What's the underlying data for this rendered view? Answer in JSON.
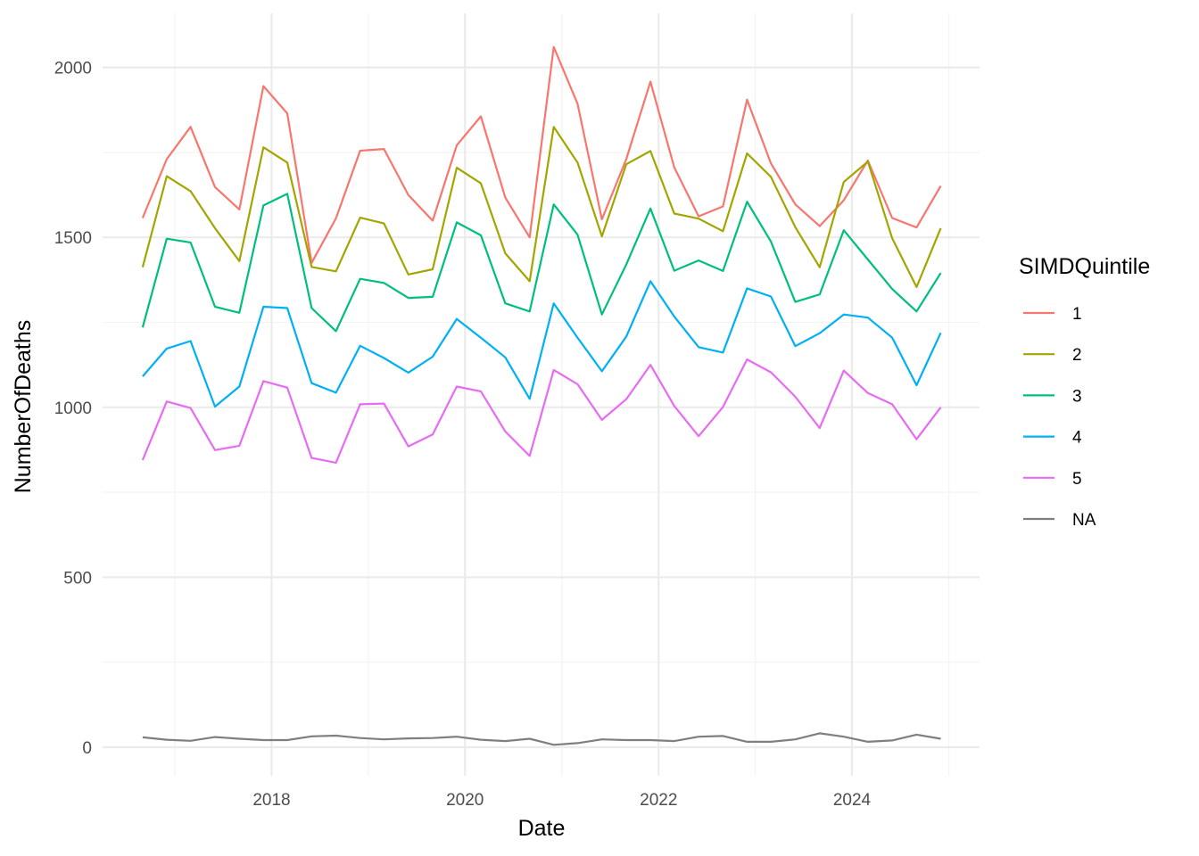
{
  "chart_data": {
    "type": "line",
    "xlabel": "Date",
    "ylabel": "NumberOfDeaths",
    "x_ticks": [
      "2018",
      "2020",
      "2022",
      "2024"
    ],
    "y_ticks": [
      "0",
      "500",
      "1000",
      "1500",
      "2000"
    ],
    "legend": {
      "title": "SIMDQuintile",
      "placement": "right"
    },
    "grid": true,
    "x": [
      "2016-09",
      "2016-12",
      "2017-03",
      "2017-06",
      "2017-09",
      "2017-12",
      "2018-03",
      "2018-06",
      "2018-09",
      "2018-12",
      "2019-03",
      "2019-06",
      "2019-09",
      "2019-12",
      "2020-03",
      "2020-06",
      "2020-09",
      "2020-12",
      "2021-03",
      "2021-06",
      "2021-09",
      "2021-12",
      "2022-03",
      "2022-06",
      "2022-09",
      "2022-12",
      "2023-03",
      "2023-06",
      "2023-09",
      "2023-12",
      "2024-03",
      "2024-06",
      "2024-09",
      "2024-12"
    ],
    "series": [
      {
        "name": "1",
        "color": "#F8766D",
        "values": [
          1557,
          1730,
          1825,
          1648,
          1582,
          1945,
          1865,
          1425,
          1556,
          1755,
          1760,
          1625,
          1549,
          1771,
          1856,
          1617,
          1500,
          2060,
          1893,
          1553,
          1730,
          1958,
          1706,
          1562,
          1591,
          1905,
          1718,
          1597,
          1533,
          1609,
          1726,
          1557,
          1529,
          1651
        ]
      },
      {
        "name": "2",
        "color": "#A3A500",
        "values": [
          1412,
          1680,
          1636,
          1527,
          1430,
          1765,
          1720,
          1413,
          1400,
          1558,
          1541,
          1391,
          1406,
          1705,
          1659,
          1453,
          1371,
          1825,
          1720,
          1503,
          1715,
          1754,
          1570,
          1555,
          1518,
          1747,
          1678,
          1530,
          1412,
          1663,
          1723,
          1497,
          1354,
          1527
        ]
      },
      {
        "name": "3",
        "color": "#00BF7D",
        "values": [
          1235,
          1496,
          1485,
          1296,
          1278,
          1594,
          1628,
          1292,
          1224,
          1378,
          1366,
          1322,
          1325,
          1544,
          1506,
          1306,
          1282,
          1597,
          1508,
          1273,
          1420,
          1585,
          1402,
          1432,
          1401,
          1605,
          1488,
          1310,
          1332,
          1521,
          1435,
          1348,
          1282,
          1395
        ]
      },
      {
        "name": "4",
        "color": "#00B0F6",
        "values": [
          1091,
          1173,
          1195,
          1002,
          1061,
          1296,
          1292,
          1071,
          1043,
          1181,
          1145,
          1102,
          1149,
          1260,
          1205,
          1147,
          1025,
          1306,
          1205,
          1106,
          1208,
          1371,
          1267,
          1177,
          1161,
          1350,
          1326,
          1180,
          1218,
          1273,
          1264,
          1205,
          1065,
          1219
        ]
      },
      {
        "name": "5",
        "color": "#E76BF3",
        "values": [
          845,
          1017,
          998,
          874,
          887,
          1077,
          1058,
          851,
          837,
          1009,
          1011,
          885,
          920,
          1061,
          1047,
          929,
          857,
          1110,
          1068,
          963,
          1024,
          1125,
          1004,
          915,
          1001,
          1141,
          1103,
          1031,
          939,
          1108,
          1042,
          1009,
          906,
          1000
        ]
      },
      {
        "name": "NA",
        "color": "#7F7F7F",
        "values": [
          29,
          22,
          19,
          30,
          25,
          21,
          21,
          32,
          34,
          27,
          23,
          26,
          27,
          31,
          22,
          18,
          25,
          7,
          12,
          23,
          21,
          21,
          18,
          31,
          33,
          16,
          16,
          23,
          41,
          31,
          16,
          20,
          37,
          25
        ]
      }
    ]
  }
}
